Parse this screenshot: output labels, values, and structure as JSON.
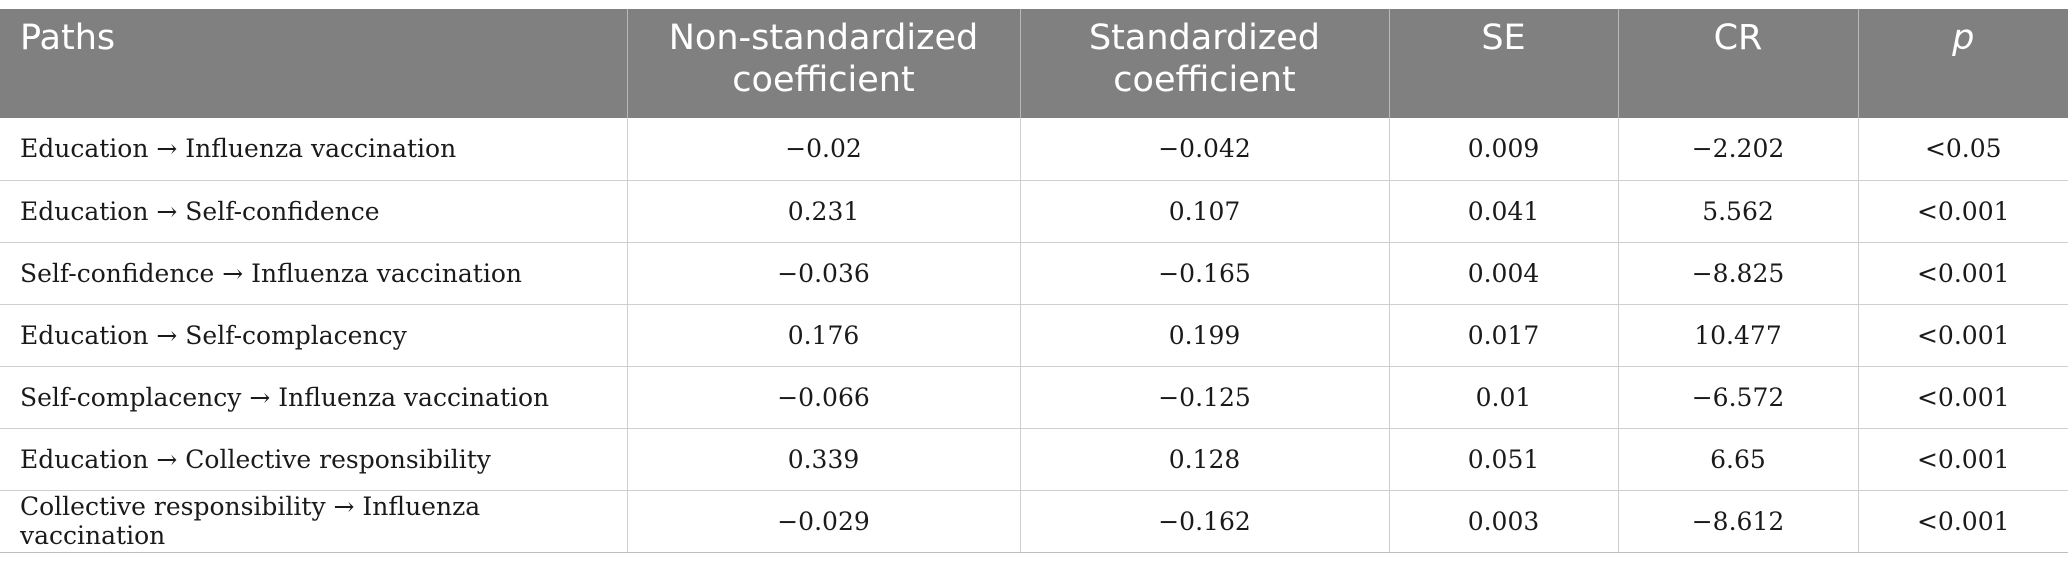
{
  "table": {
    "headers": [
      "Paths",
      "Non-standardized coefficient",
      "Standardized coefficient",
      "SE",
      "CR",
      "p"
    ],
    "rows": [
      [
        "Education → Influenza vaccination",
        "−0.02",
        "−0.042",
        "0.009",
        "−2.202",
        "<0.05"
      ],
      [
        "Education → Self-confidence",
        "0.231",
        "0.107",
        "0.041",
        "5.562",
        "<0.001"
      ],
      [
        "Self-confidence → Influenza vaccination",
        "−0.036",
        "−0.165",
        "0.004",
        "−8.825",
        "<0.001"
      ],
      [
        "Education → Self-complacency",
        "0.176",
        "0.199",
        "0.017",
        "10.477",
        "<0.001"
      ],
      [
        "Self-complacency → Influenza vaccination",
        "−0.066",
        "−0.125",
        "0.01",
        "−6.572",
        "<0.001"
      ],
      [
        "Education → Collective responsibility",
        "0.339",
        "0.128",
        "0.051",
        "6.65",
        "<0.001"
      ],
      [
        "Collective responsibility → Influenza vaccination",
        "−0.029",
        "−0.162",
        "0.003",
        "−8.612",
        "<0.001"
      ]
    ]
  }
}
